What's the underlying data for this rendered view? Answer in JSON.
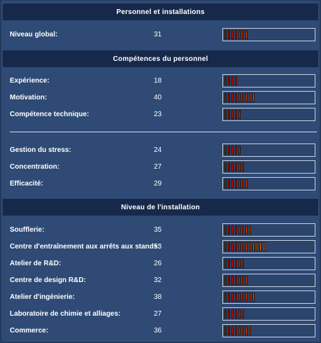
{
  "sections": {
    "personnel_installations": "Personnel et installations",
    "competences": "Compétences du personnel",
    "installation": "Niveau de l'installation"
  },
  "rows": {
    "niveau_global": {
      "label": "Niveau global:",
      "value": 31
    },
    "experience": {
      "label": "Expérience:",
      "value": 18
    },
    "motivation": {
      "label": "Motivation:",
      "value": 40
    },
    "competence_technique": {
      "label": "Compétence technique:",
      "value": 23
    },
    "gestion_stress": {
      "label": "Gestion du stress:",
      "value": 24
    },
    "concentration": {
      "label": "Concentration:",
      "value": 27
    },
    "efficacite": {
      "label": "Efficacité:",
      "value": 29
    },
    "soufflerie": {
      "label": "Soufflerie:",
      "value": 35
    },
    "centre_entrainement": {
      "label": "Centre d'entraînement aux arrêts aux stands:",
      "value": 53
    },
    "atelier_rd": {
      "label": "Atelier de R&D:",
      "value": 26
    },
    "centre_design": {
      "label": "Centre de design R&D:",
      "value": 32
    },
    "atelier_ingenierie": {
      "label": "Atelier d'ingénierie:",
      "value": 38
    },
    "laboratoire_chimie": {
      "label": "Laboratoire de chimie et alliages:",
      "value": 27
    },
    "commerce": {
      "label": "Commerce:",
      "value": 36
    }
  },
  "bar_scale_max": 100,
  "bar_colors": [
    "#cc0000",
    "#d81000",
    "#e02800",
    "#e84000",
    "#ee5c00",
    "#f27800",
    "#f59400",
    "#f8b000",
    "#facc00",
    "#fce000",
    "#f0f000",
    "#d8f000"
  ]
}
